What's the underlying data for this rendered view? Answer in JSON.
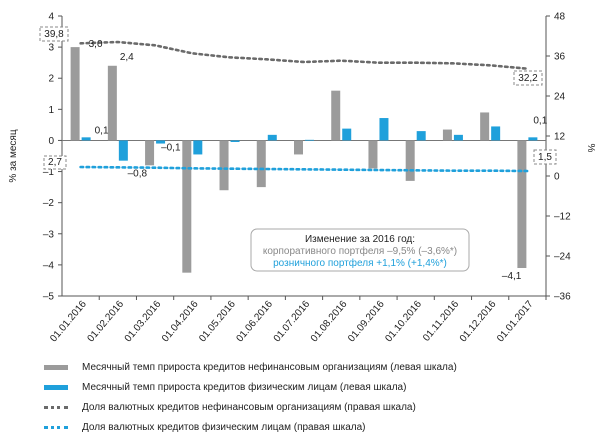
{
  "chart_data": {
    "type": "bar",
    "categories": [
      "01.01.2016",
      "01.02.2016",
      "01.03.2016",
      "01.04.2016",
      "01.05.2016",
      "01.06.2016",
      "01.07.2016",
      "01.08.2016",
      "01.09.2016",
      "01.10.2016",
      "01.11.2016",
      "01.12.2016",
      "01.01.2017"
    ],
    "ylabel": "% за месяц",
    "y2label": "%",
    "ylim": [
      -5,
      4
    ],
    "y2lim": [
      -36,
      48
    ],
    "yticks": [
      "4",
      "3",
      "2",
      "1",
      "0",
      "–1",
      "–2",
      "–3",
      "–4",
      "–5"
    ],
    "y2ticks": [
      "48",
      "36",
      "24",
      "12",
      "0",
      "–12",
      "–24",
      "–36"
    ],
    "series": [
      {
        "name": "Месячный темп прироста кредитов нефинансовым организациям (левая шкала)",
        "axis": "left",
        "type": "bar",
        "color": "#9b9b9b",
        "values": [
          3.0,
          2.4,
          -0.8,
          -4.25,
          -1.6,
          -1.5,
          -0.45,
          1.6,
          -0.9,
          -1.3,
          0.35,
          0.9,
          -4.1
        ],
        "labels": [
          "3,0",
          "2,4",
          "–0,8",
          "",
          "",
          "",
          "",
          "",
          "",
          "",
          "",
          "",
          "–4,1"
        ]
      },
      {
        "name": "Месячный темп прироста кредитов физическим лицам (левая шкала)",
        "axis": "left",
        "type": "bar",
        "color": "#1fa0db",
        "values": [
          0.1,
          -0.65,
          -0.1,
          -0.45,
          -0.05,
          0.18,
          0.02,
          0.38,
          0.72,
          0.3,
          0.18,
          0.45,
          0.1
        ],
        "labels": [
          "0,1",
          "",
          "–0,1",
          "",
          "",
          "",
          "",
          "",
          "",
          "",
          "",
          "",
          "0,1"
        ]
      },
      {
        "name": "Доля валютных кредитов нефинансовым организациям (правая шкала)",
        "axis": "right",
        "type": "line",
        "color": "#6a6a6a",
        "values": [
          39.8,
          40.2,
          39.2,
          36.8,
          35.6,
          35.0,
          34.2,
          34.6,
          34.0,
          34.0,
          33.8,
          33.2,
          32.2
        ],
        "labels": [
          "39,8",
          "",
          "",
          "",
          "",
          "",
          "",
          "",
          "",
          "",
          "",
          "",
          "32,2"
        ]
      },
      {
        "name": "Доля валютных кредитов физическим лицам (правая шкала)",
        "axis": "right",
        "type": "line",
        "color": "#1fa0db",
        "values": [
          2.7,
          2.6,
          2.5,
          2.3,
          2.2,
          2.1,
          2.0,
          1.9,
          1.8,
          1.7,
          1.6,
          1.6,
          1.5
        ],
        "labels": [
          "2,7",
          "",
          "",
          "",
          "",
          "",
          "",
          "",
          "",
          "",
          "",
          "",
          "1,5"
        ]
      }
    ],
    "annotation": {
      "title": "Изменение за 2016 год:",
      "corporate": "корпоративного портфеля –9,5% (–3,6%*)",
      "retail": "розничного портфеля +1,1% (+1,4%*)"
    },
    "grid": false,
    "legend_position": "bottom"
  }
}
